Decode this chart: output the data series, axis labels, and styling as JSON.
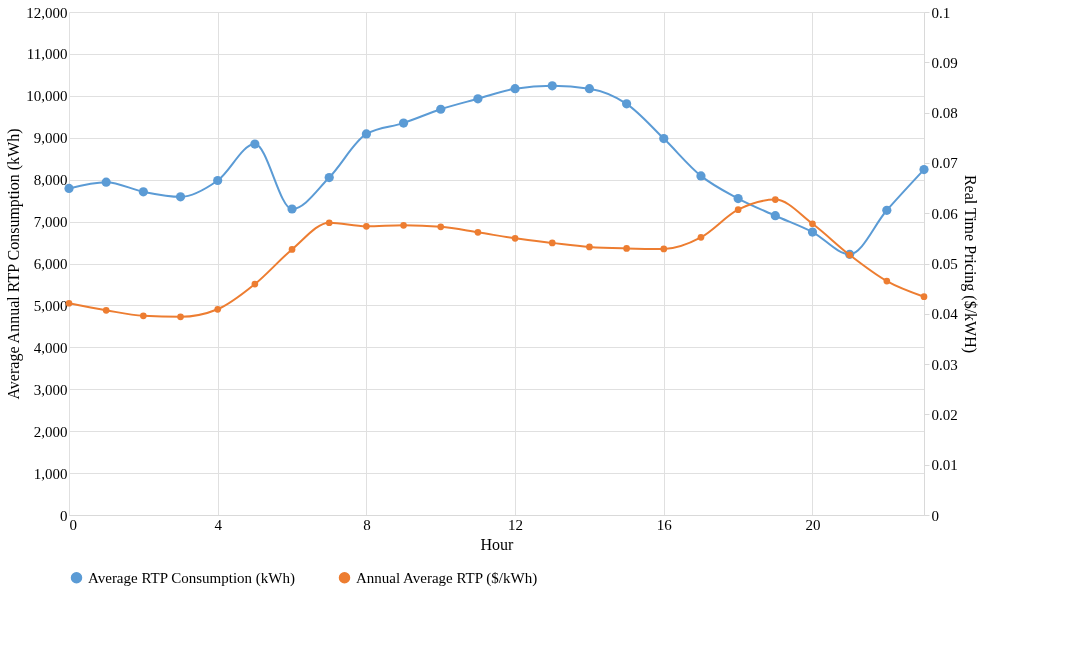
{
  "chart_data": {
    "type": "line",
    "xlabel": "Hour",
    "ylabel": "Average Annual RTP Consumption (kWh)",
    "y2label": "Real Time Pricing ($/kWH)",
    "x": [
      0,
      1,
      2,
      3,
      4,
      5,
      6,
      7,
      8,
      9,
      10,
      11,
      12,
      13,
      14,
      15,
      16,
      17,
      18,
      19,
      20,
      21,
      22,
      23
    ],
    "series": [
      {
        "name": "Average RTP Consumption (kWh)",
        "color": "#5b9bd5",
        "values": [
          7790,
          7940,
          7710,
          7590,
          7980,
          8850,
          7300,
          8050,
          9090,
          9350,
          9680,
          9930,
          10170,
          10240,
          10170,
          9810,
          8980,
          8090,
          7550,
          7140,
          6750,
          6220,
          7270,
          8240
        ]
      },
      {
        "name": "Annual Average RTP ($/kWh)",
        "color": "#ed7d31",
        "axis": "y2",
        "values": [
          0.0421,
          0.0407,
          0.0396,
          0.0394,
          0.0409,
          0.0459,
          0.0528,
          0.0581,
          0.0574,
          0.0576,
          0.0573,
          0.0562,
          0.055,
          0.0541,
          0.0533,
          0.053,
          0.0529,
          0.0552,
          0.0607,
          0.0627,
          0.0579,
          0.0517,
          0.0465,
          0.0434
        ]
      }
    ],
    "xlim": [
      0,
      23
    ],
    "xticks": [
      0,
      4,
      8,
      12,
      16,
      20
    ],
    "ylim": [
      0,
      12000
    ],
    "yticks": [
      0,
      {
        "value": 1000,
        "label": "1,000"
      },
      {
        "value": 2000,
        "label": "2,000"
      },
      {
        "value": 3000,
        "label": "3,000"
      },
      {
        "value": 4000,
        "label": "4,000"
      },
      {
        "value": 5000,
        "label": "5,000"
      },
      {
        "value": 6000,
        "label": "6,000"
      },
      {
        "value": 7000,
        "label": "7,000"
      },
      {
        "value": 8000,
        "label": "8,000"
      },
      {
        "value": 9000,
        "label": "9,000"
      },
      {
        "value": 10000,
        "label": "10,000"
      },
      {
        "value": 11000,
        "label": "11,000"
      },
      {
        "value": 12000,
        "label": "12,000"
      }
    ],
    "y2lim": [
      0,
      0.1
    ],
    "y2ticks": [
      0,
      0.01,
      0.02,
      0.03,
      0.04,
      0.05,
      0.06,
      0.07,
      0.08,
      0.09,
      0.1
    ],
    "grid": true,
    "legend": "bottom",
    "marker": "circle",
    "line_style": "solid"
  }
}
